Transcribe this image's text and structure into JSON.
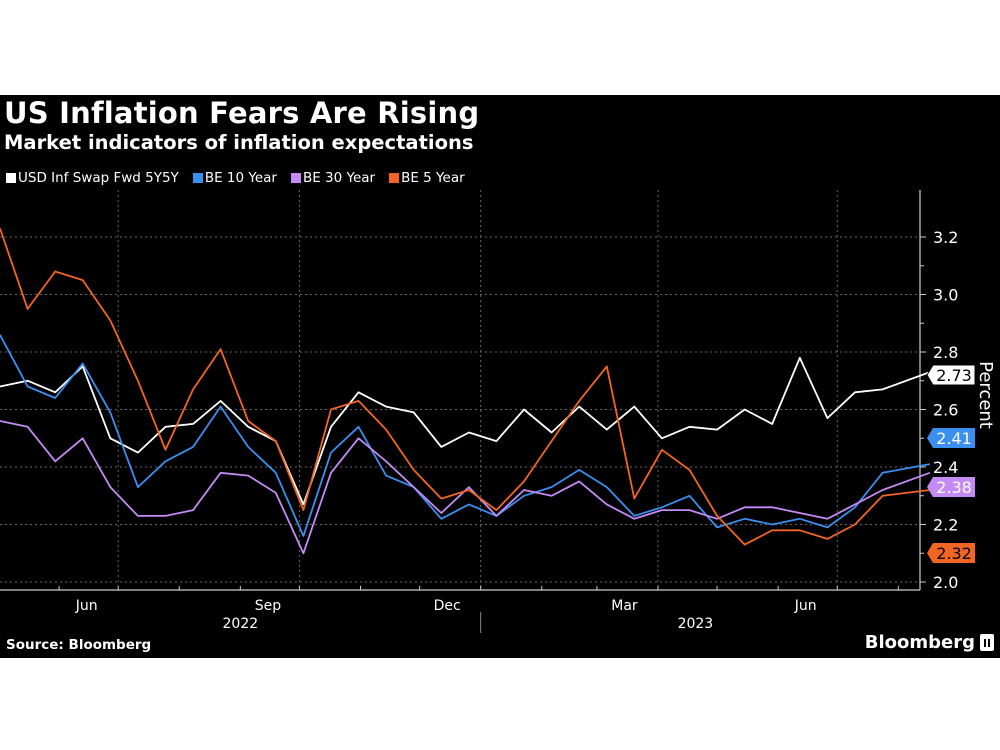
{
  "title": "US Inflation Fears Are Rising",
  "subtitle": "Market indicators of inflation expectations",
  "source": "Source: Bloomberg",
  "brand": "Bloomberg",
  "chart_data": {
    "type": "line",
    "ylabel": "Percent",
    "ylim": [
      1.97,
      3.27
    ],
    "yticks": [
      "2.0",
      "2.2",
      "2.4",
      "2.6",
      "2.8",
      "3.0",
      "3.2"
    ],
    "grid": true,
    "legend_placement": "top-left",
    "x_month_labels": [
      {
        "label": "Jun",
        "date": "2022-06-15"
      },
      {
        "label": "Sep",
        "date": "2022-09-15"
      },
      {
        "label": "Dec",
        "date": "2022-12-15"
      },
      {
        "label": "Mar",
        "date": "2023-03-15"
      },
      {
        "label": "Jun",
        "date": "2023-06-15"
      }
    ],
    "x_year_labels": [
      {
        "label": "2022",
        "date": "2022-09-01"
      },
      {
        "label": "2023",
        "date": "2023-04-20"
      }
    ],
    "x": [
      "2022-05-02",
      "2022-05-16",
      "2022-05-30",
      "2022-06-13",
      "2022-06-27",
      "2022-07-11",
      "2022-07-25",
      "2022-08-08",
      "2022-08-22",
      "2022-09-05",
      "2022-09-19",
      "2022-10-03",
      "2022-10-17",
      "2022-10-31",
      "2022-11-14",
      "2022-11-28",
      "2022-12-12",
      "2022-12-26",
      "2023-01-09",
      "2023-01-23",
      "2023-02-06",
      "2023-02-20",
      "2023-03-06",
      "2023-03-20",
      "2023-04-03",
      "2023-04-17",
      "2023-05-01",
      "2023-05-15",
      "2023-05-29",
      "2023-06-12",
      "2023-06-26",
      "2023-07-10",
      "2023-07-24",
      "2023-08-17"
    ],
    "series": [
      {
        "name": "USD Inf Swap Fwd 5Y5Y",
        "color": "#ffffff",
        "last_label": "2.73",
        "values": [
          2.68,
          2.7,
          2.66,
          2.75,
          2.5,
          2.45,
          2.54,
          2.55,
          2.63,
          2.54,
          2.49,
          2.27,
          2.54,
          2.66,
          2.61,
          2.59,
          2.47,
          2.52,
          2.49,
          2.6,
          2.52,
          2.61,
          2.53,
          2.61,
          2.5,
          2.54,
          2.53,
          2.6,
          2.55,
          2.78,
          2.57,
          2.66,
          2.67,
          2.73
        ]
      },
      {
        "name": "BE 10 Year",
        "color": "#3a8ff0",
        "last_label": "2.41",
        "values": [
          2.86,
          2.68,
          2.64,
          2.76,
          2.59,
          2.33,
          2.42,
          2.47,
          2.61,
          2.47,
          2.38,
          2.16,
          2.45,
          2.54,
          2.37,
          2.33,
          2.22,
          2.27,
          2.23,
          2.3,
          2.33,
          2.39,
          2.33,
          2.23,
          2.26,
          2.3,
          2.19,
          2.22,
          2.2,
          2.22,
          2.19,
          2.26,
          2.38,
          2.41
        ]
      },
      {
        "name": "BE 30 Year",
        "color": "#c48af5",
        "last_label": "2.38",
        "values": [
          2.56,
          2.54,
          2.42,
          2.5,
          2.33,
          2.23,
          2.23,
          2.25,
          2.38,
          2.37,
          2.31,
          2.1,
          2.38,
          2.5,
          2.42,
          2.33,
          2.24,
          2.33,
          2.23,
          2.32,
          2.3,
          2.35,
          2.27,
          2.22,
          2.25,
          2.25,
          2.22,
          2.26,
          2.26,
          2.24,
          2.22,
          2.27,
          2.32,
          2.38
        ]
      },
      {
        "name": "BE 5 Year",
        "color": "#f26522",
        "last_label": "2.32",
        "values": [
          3.23,
          2.95,
          3.08,
          3.05,
          2.91,
          2.7,
          2.46,
          2.67,
          2.81,
          2.56,
          2.49,
          2.25,
          2.6,
          2.63,
          2.53,
          2.39,
          2.29,
          2.32,
          2.25,
          2.35,
          2.49,
          2.63,
          2.75,
          2.29,
          2.46,
          2.39,
          2.23,
          2.13,
          2.18,
          2.18,
          2.15,
          2.2,
          2.3,
          2.32
        ]
      }
    ]
  }
}
